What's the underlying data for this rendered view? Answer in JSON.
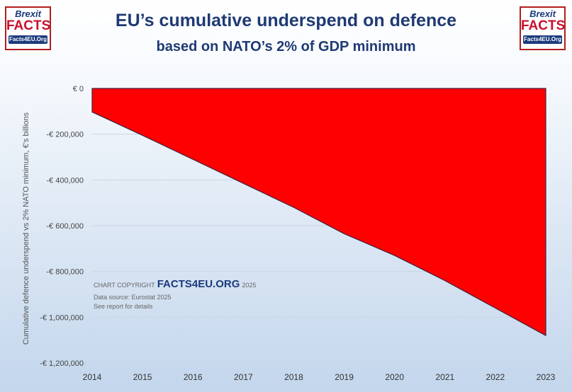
{
  "logos": {
    "left": {
      "brexit": "Brexit",
      "facts": "FACTS",
      "url": "Facts4EU.Org"
    },
    "right": {
      "brexit": "Brexit",
      "facts": "FACTS",
      "url": "Facts4EU.Org"
    }
  },
  "chart_data": {
    "type": "area",
    "title": "EU’s cumulative underspend on defence",
    "subtitle": "based on NATO’s 2% of GDP minimum",
    "xlabel": "",
    "ylabel": "Cumulative defence underspend vs 2% NATO minimum, €’s billions",
    "x": [
      2014,
      2015,
      2016,
      2017,
      2018,
      2019,
      2020,
      2021,
      2022,
      2023
    ],
    "x_tick_labels": [
      "2014",
      "2015",
      "2016",
      "2017",
      "2018",
      "2019",
      "2020",
      "2021",
      "2022",
      "2023"
    ],
    "series": [
      {
        "name": "Cumulative underspend",
        "color": "#ff0000",
        "values": [
          -103000,
          -205000,
          -310000,
          -415000,
          -520000,
          -635000,
          -730000,
          -840000,
          -960000,
          -1080000
        ]
      }
    ],
    "ylim": [
      -1200000,
      0
    ],
    "y_ticks": [
      0,
      -200000,
      -400000,
      -600000,
      -800000,
      -1000000,
      -1200000
    ],
    "y_tick_labels": [
      "€ 0",
      "-€ 200,000",
      "-€ 400,000",
      "-€ 600,000",
      "-€ 800,000",
      "-€ 1,000,000",
      "-€ 1,200,000"
    ],
    "grid": true,
    "annotations": {
      "copyright_prefix": "CHART COPYRIGHT",
      "copyright_brand": "FACTS4EU.ORG",
      "copyright_year": "2025",
      "source": "Data source: Eurostat 2025",
      "details": "See report for details"
    }
  }
}
